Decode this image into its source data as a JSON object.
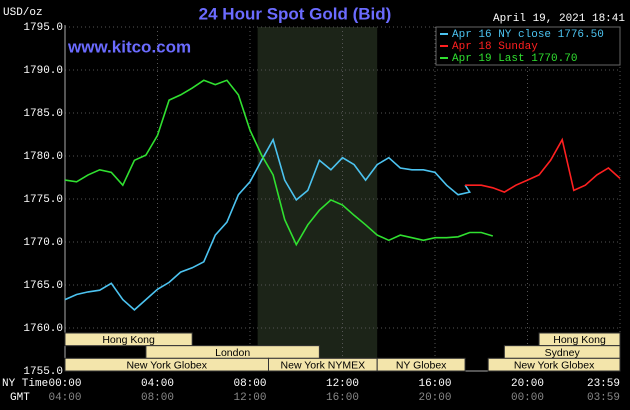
{
  "chart_data": {
    "type": "line",
    "title": "24 Hour Spot Gold (Bid)",
    "date": "April 19, 2021 18:41",
    "site": "www.kitco.com",
    "unit": "USD/oz",
    "x_axis_label": "NY Time",
    "x2_axis_label": "GMT",
    "xlim": [
      0,
      24
    ],
    "ylim": [
      1755,
      1795
    ],
    "grid": true,
    "legend": "top-right",
    "yticks": [
      {
        "value": 1755,
        "label": "1755.0"
      },
      {
        "value": 1760,
        "label": "1760.0"
      },
      {
        "value": 1765,
        "label": "1765.0"
      },
      {
        "value": 1770,
        "label": "1770.0"
      },
      {
        "value": 1775,
        "label": "1775.0"
      },
      {
        "value": 1780,
        "label": "1780.0"
      },
      {
        "value": 1785,
        "label": "1785.0"
      },
      {
        "value": 1790,
        "label": "1790.0"
      },
      {
        "value": 1795,
        "label": "1795.0"
      }
    ],
    "xticks": [
      {
        "value": 0,
        "label": "00:00"
      },
      {
        "value": 4,
        "label": "04:00"
      },
      {
        "value": 8,
        "label": "08:00"
      },
      {
        "value": 12,
        "label": "12:00"
      },
      {
        "value": 16,
        "label": "16:00"
      },
      {
        "value": 20,
        "label": "20:00"
      },
      {
        "value": 24,
        "label": "23:59"
      }
    ],
    "x2ticks": [
      {
        "value": 0,
        "label": "04:00"
      },
      {
        "value": 4,
        "label": "08:00"
      },
      {
        "value": 8,
        "label": "12:00"
      },
      {
        "value": 12,
        "label": "16:00"
      },
      {
        "value": 16,
        "label": "20:00"
      },
      {
        "value": 20,
        "label": "00:00"
      },
      {
        "value": 24,
        "label": "03:59"
      }
    ],
    "shaded": [
      8.33,
      13.5
    ],
    "session_rows": [
      [
        {
          "label": "Hong Kong",
          "start": 0,
          "end": 5.5
        },
        {
          "label": "Hong Kong",
          "start": 20.5,
          "end": 24
        }
      ],
      [
        {
          "label": "London",
          "start": 3.5,
          "end": 11
        },
        {
          "label": "Sydney",
          "start": 19,
          "end": 24
        }
      ],
      [
        {
          "label": "New York Globex",
          "start": 0,
          "end": 8.8
        },
        {
          "label": "New York NYMEX",
          "start": 8.8,
          "end": 13.5
        },
        {
          "label": "NY Globex",
          "start": 13.5,
          "end": 17.3
        },
        {
          "label": "New York Globex",
          "start": 18.3,
          "end": 24
        }
      ]
    ],
    "series": [
      {
        "name": "Apr 16 NY close 1776.50",
        "color": "#4cc3f0",
        "x": [
          0,
          0.5,
          1,
          1.5,
          2,
          2.5,
          3,
          3.5,
          4,
          4.5,
          5,
          5.5,
          6,
          6.5,
          7,
          7.5,
          8,
          8.5,
          9,
          9.5,
          10,
          10.5,
          11,
          11.5,
          12,
          12.5,
          13,
          13.5,
          14,
          14.5,
          15,
          15.5,
          16,
          16.5,
          17,
          17.5,
          17.3
        ],
        "values": [
          1763.3,
          1763.9,
          1764.2,
          1764.4,
          1765.2,
          1763.3,
          1762.1,
          1763.3,
          1764.5,
          1765.3,
          1766.5,
          1767,
          1767.7,
          1770.8,
          1772.3,
          1775.5,
          1777,
          1779.5,
          1781.9,
          1777.2,
          1774.9,
          1776,
          1779.5,
          1778.4,
          1779.8,
          1779,
          1777.2,
          1779,
          1779.8,
          1778.6,
          1778.4,
          1778.4,
          1778.1,
          1776.6,
          1775.5,
          1775.8,
          1776.6
        ]
      },
      {
        "name": "Apr 18 Sunday",
        "color": "#ff2020",
        "x": [
          17.3,
          18,
          18.5,
          19,
          19.5,
          20,
          20.5,
          21,
          21.5,
          22,
          22.5,
          23,
          23.5,
          24
        ],
        "values": [
          1776.6,
          1776.6,
          1776.3,
          1775.8,
          1776.6,
          1777.2,
          1777.8,
          1779.5,
          1781.9,
          1776,
          1776.6,
          1777.8,
          1778.6,
          1777.4
        ]
      },
      {
        "name": "Apr 19 Last 1770.70",
        "color": "#30e030",
        "x": [
          0,
          0.5,
          1,
          1.5,
          2,
          2.5,
          3,
          3.5,
          4,
          4.5,
          5,
          5.5,
          6,
          6.5,
          7,
          7.5,
          8,
          8.5,
          9,
          9.5,
          10,
          10.5,
          11,
          11.5,
          12,
          12.5,
          13,
          13.5,
          14,
          14.5,
          15,
          15.5,
          16,
          16.5,
          17,
          17.5,
          18,
          18.5
        ],
        "values": [
          1777.2,
          1777,
          1777.8,
          1778.4,
          1778.1,
          1776.6,
          1779.5,
          1780.1,
          1782.4,
          1786.5,
          1787.1,
          1787.9,
          1788.8,
          1788.3,
          1788.8,
          1787.1,
          1783,
          1780.1,
          1777.8,
          1772.6,
          1769.7,
          1772,
          1773.7,
          1774.9,
          1774.3,
          1773.1,
          1772,
          1770.8,
          1770.2,
          1770.8,
          1770.5,
          1770.2,
          1770.5,
          1770.5,
          1770.6,
          1771.1,
          1771.1,
          1770.7
        ]
      }
    ]
  }
}
